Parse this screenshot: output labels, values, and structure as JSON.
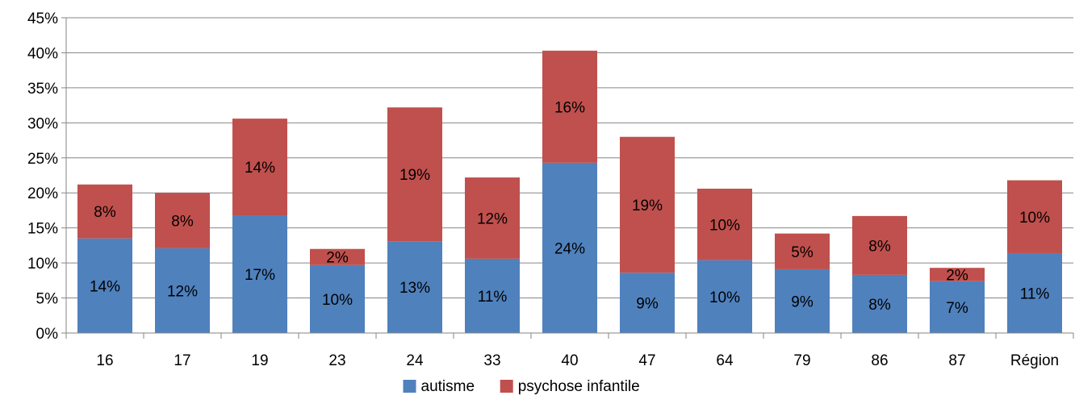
{
  "chart_data": {
    "type": "bar",
    "stacked": true,
    "categories": [
      "16",
      "17",
      "19",
      "23",
      "24",
      "33",
      "40",
      "47",
      "64",
      "79",
      "86",
      "87",
      "Région"
    ],
    "series": [
      {
        "name": "autisme",
        "color": "#4f81bd",
        "values": [
          13.5,
          12.1,
          16.8,
          9.7,
          13.1,
          10.6,
          24.3,
          8.6,
          10.4,
          9.1,
          8.3,
          7.4,
          11.4
        ],
        "labels": [
          "14%",
          "12%",
          "17%",
          "10%",
          "13%",
          "11%",
          "24%",
          "9%",
          "10%",
          "9%",
          "8%",
          "7%",
          "11%"
        ]
      },
      {
        "name": "psychose infantile",
        "color": "#c0504d",
        "values": [
          7.7,
          7.9,
          13.8,
          2.3,
          19.1,
          11.6,
          16.0,
          19.4,
          10.2,
          5.1,
          8.4,
          1.9,
          10.4
        ],
        "labels": [
          "8%",
          "8%",
          "14%",
          "2%",
          "19%",
          "12%",
          "16%",
          "19%",
          "10%",
          "5%",
          "8%",
          "2%",
          "10%"
        ]
      }
    ],
    "ylim": [
      0,
      45
    ],
    "yticks": [
      "0%",
      "5%",
      "10%",
      "15%",
      "20%",
      "25%",
      "30%",
      "35%",
      "40%",
      "45%"
    ],
    "grid": true,
    "legend_position": "bottom",
    "title": "",
    "xlabel": "",
    "ylabel": ""
  }
}
